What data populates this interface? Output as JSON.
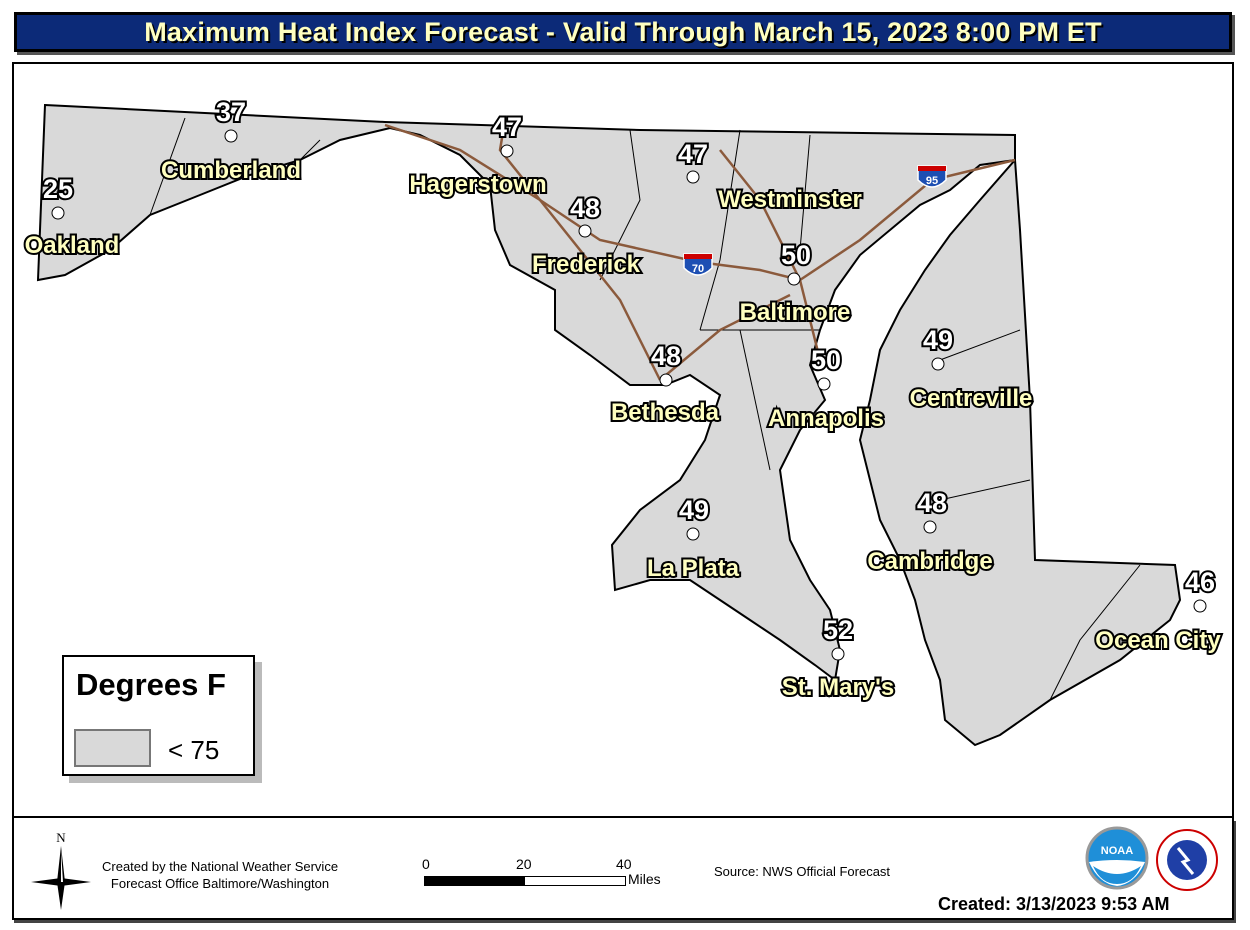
{
  "header": {
    "title": "Maximum Heat Index Forecast - Valid Through March 15, 2023 8:00 PM ET"
  },
  "map": {
    "land_color": "#d9d9d9",
    "road_color": "#8b5a3c",
    "interstates": [
      "70",
      "95"
    ],
    "cities": [
      {
        "name": "Oakland",
        "value": "25"
      },
      {
        "name": "Cumberland",
        "value": "37"
      },
      {
        "name": "Hagerstown",
        "value": "47"
      },
      {
        "name": "Westminster",
        "value": "47"
      },
      {
        "name": "Frederick",
        "value": "48"
      },
      {
        "name": "Baltimore",
        "value": "50"
      },
      {
        "name": "Annapolis",
        "value": "50"
      },
      {
        "name": "Centreville",
        "value": "49"
      },
      {
        "name": "Bethesda",
        "value": "48"
      },
      {
        "name": "La Plata",
        "value": "49"
      },
      {
        "name": "Cambridge",
        "value": "48"
      },
      {
        "name": "St. Mary's",
        "value": "52"
      },
      {
        "name": "Ocean City",
        "value": "46"
      }
    ]
  },
  "legend": {
    "title": "Degrees F",
    "items": [
      {
        "label": "< 75",
        "color": "#d9d9d9"
      }
    ]
  },
  "footer": {
    "compass": "N",
    "credit_line1": "Created by the National Weather Service",
    "credit_line2": "Forecast Office Baltimore/Washington",
    "scale_ticks": [
      "0",
      "20",
      "40"
    ],
    "scale_units": "Miles",
    "source": "Source: NWS Official Forecast",
    "created": "Created: 3/13/2023 9:53 AM",
    "logos": [
      "NOAA",
      "NATIONAL WEATHER SERVICE"
    ]
  }
}
